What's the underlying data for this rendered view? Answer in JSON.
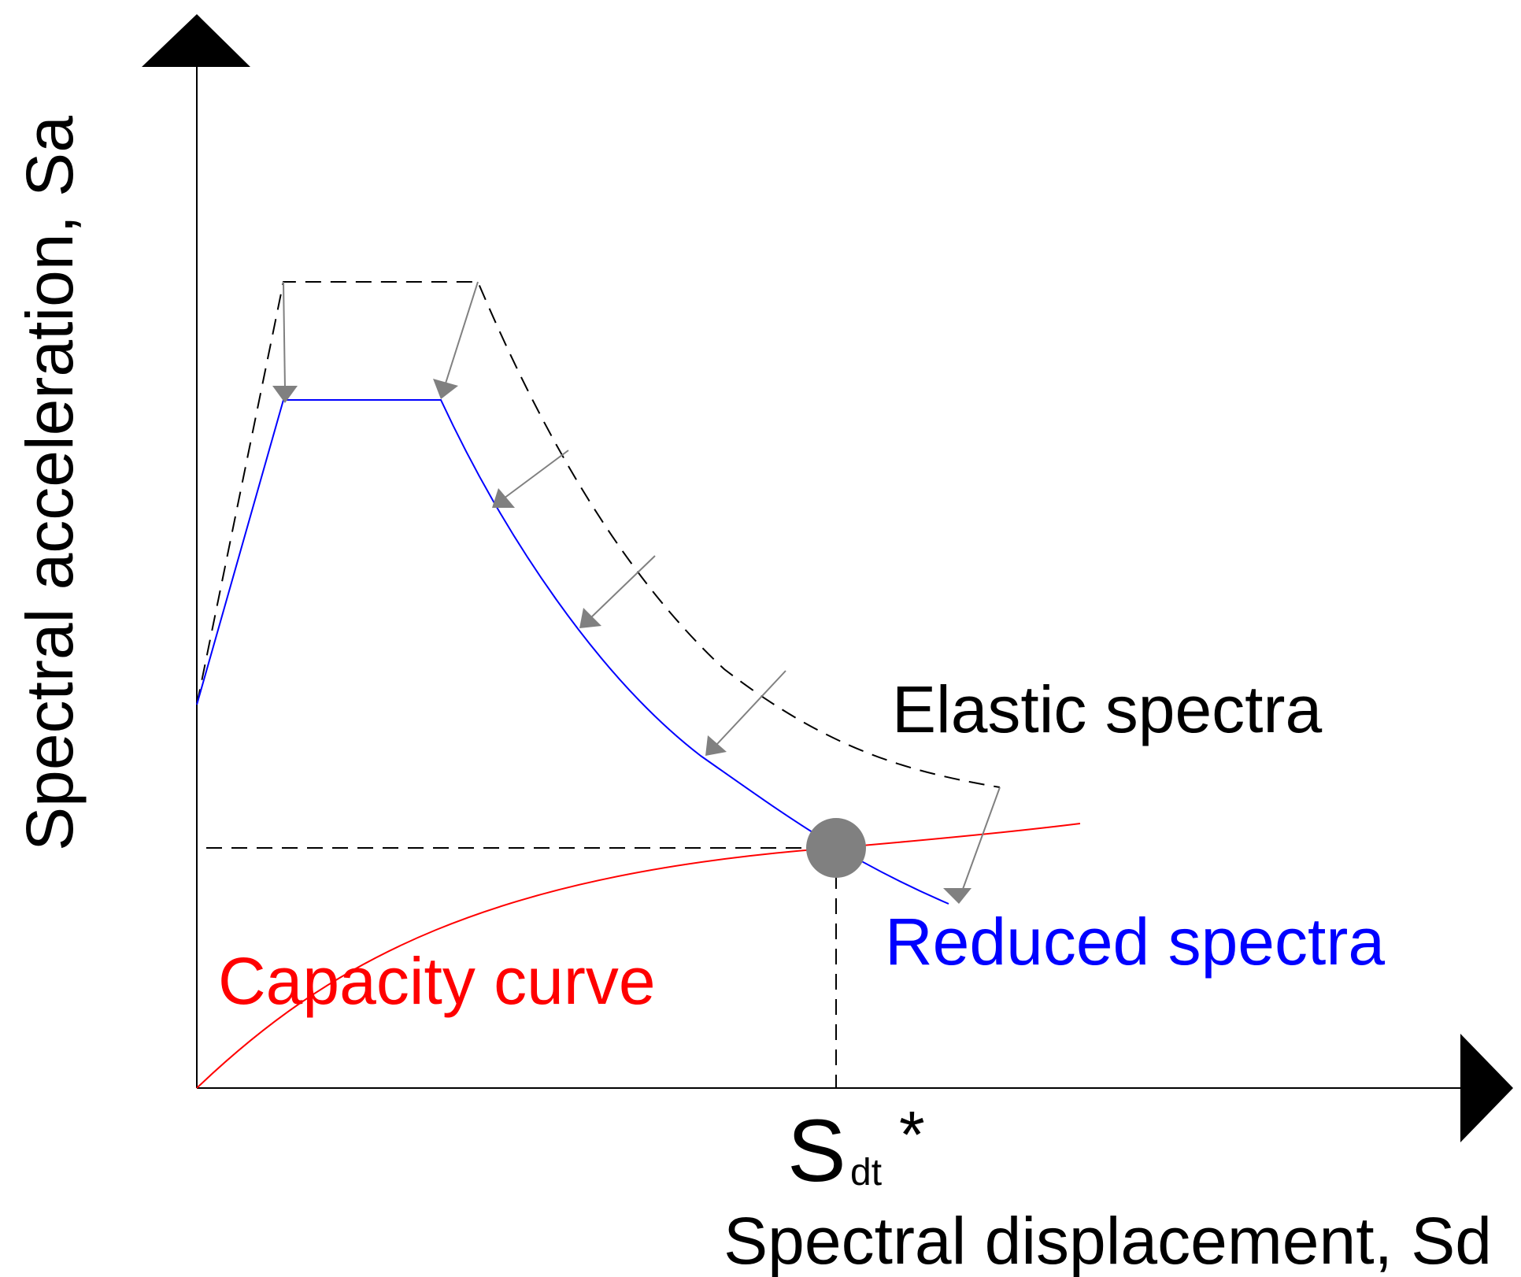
{
  "axes": {
    "y_label": "Spectral acceleration, Sa",
    "x_label": "Spectral displacement, Sd"
  },
  "labels": {
    "elastic": "Elastic spectra",
    "reduced": "Reduced spectra",
    "capacity": "Capacity curve",
    "point_main": "S",
    "point_sub": "dt",
    "point_star": "*"
  },
  "colors": {
    "axis": "#000000",
    "elastic": "#000000",
    "reduced": "#0000ff",
    "capacity": "#ff0000",
    "arrow": "#808080",
    "point": "#808080"
  }
}
